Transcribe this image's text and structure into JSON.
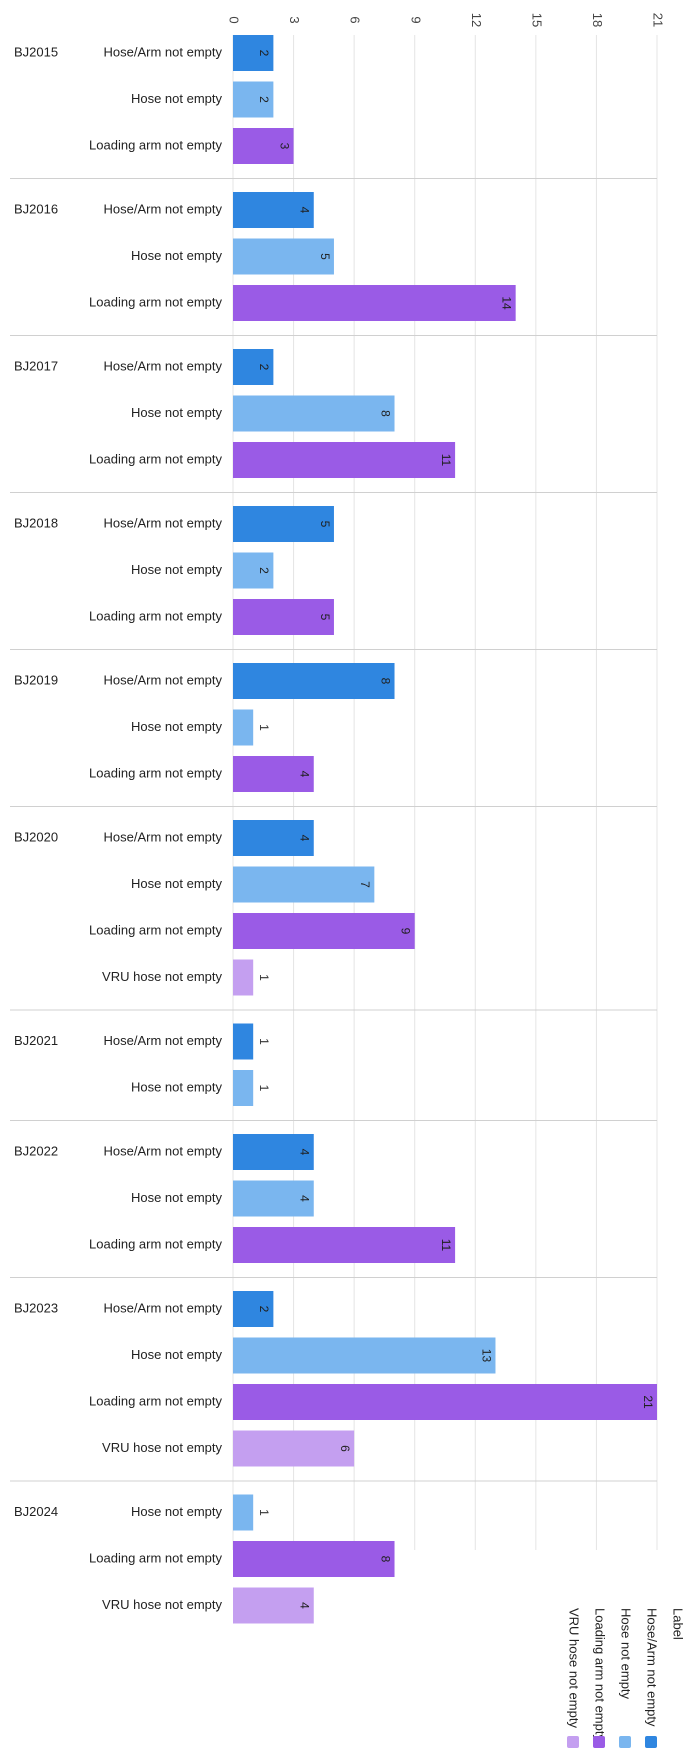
{
  "chart_data": {
    "type": "bar",
    "orientation": "horizontal",
    "title": "",
    "xlabel": "",
    "ylabel": "",
    "xlim": [
      0,
      21
    ],
    "xticks": [
      0,
      3,
      6,
      9,
      12,
      15,
      18,
      21
    ],
    "grid": true,
    "legend_title": "Label",
    "legend_position": "bottom-right",
    "series": [
      {
        "name": "Hose/Arm not empty",
        "color": "#2f86e0"
      },
      {
        "name": "Hose not empty",
        "color": "#7ab6ef"
      },
      {
        "name": "Loading arm not empty",
        "color": "#9a5be6"
      },
      {
        "name": "VRU hose not empty",
        "color": "#c49ff0"
      }
    ],
    "groups": [
      {
        "name": "BJ2015",
        "bars": [
          {
            "series": 0,
            "label": "Hose/Arm not empty",
            "value": 2
          },
          {
            "series": 1,
            "label": "Hose not empty",
            "value": 2
          },
          {
            "series": 2,
            "label": "Loading arm not empty",
            "value": 3
          }
        ]
      },
      {
        "name": "BJ2016",
        "bars": [
          {
            "series": 0,
            "label": "Hose/Arm not empty",
            "value": 4
          },
          {
            "series": 1,
            "label": "Hose not empty",
            "value": 5
          },
          {
            "series": 2,
            "label": "Loading arm not empty",
            "value": 14
          }
        ]
      },
      {
        "name": "BJ2017",
        "bars": [
          {
            "series": 0,
            "label": "Hose/Arm not empty",
            "value": 2
          },
          {
            "series": 1,
            "label": "Hose not empty",
            "value": 8
          },
          {
            "series": 2,
            "label": "Loading arm not empty",
            "value": 11
          }
        ]
      },
      {
        "name": "BJ2018",
        "bars": [
          {
            "series": 0,
            "label": "Hose/Arm not empty",
            "value": 5
          },
          {
            "series": 1,
            "label": "Hose not empty",
            "value": 2
          },
          {
            "series": 2,
            "label": "Loading arm not empty",
            "value": 5
          }
        ]
      },
      {
        "name": "BJ2019",
        "bars": [
          {
            "series": 0,
            "label": "Hose/Arm not empty",
            "value": 8
          },
          {
            "series": 1,
            "label": "Hose not empty",
            "value": 1
          },
          {
            "series": 2,
            "label": "Loading arm not empty",
            "value": 4
          }
        ]
      },
      {
        "name": "BJ2020",
        "bars": [
          {
            "series": 0,
            "label": "Hose/Arm not empty",
            "value": 4
          },
          {
            "series": 1,
            "label": "Hose not empty",
            "value": 7
          },
          {
            "series": 2,
            "label": "Loading arm not empty",
            "value": 9
          },
          {
            "series": 3,
            "label": "VRU hose not empty",
            "value": 1
          }
        ]
      },
      {
        "name": "BJ2021",
        "bars": [
          {
            "series": 0,
            "label": "Hose/Arm not empty",
            "value": 1
          },
          {
            "series": 1,
            "label": "Hose not empty",
            "value": 1
          }
        ]
      },
      {
        "name": "BJ2022",
        "bars": [
          {
            "series": 0,
            "label": "Hose/Arm not empty",
            "value": 4
          },
          {
            "series": 1,
            "label": "Hose not empty",
            "value": 4
          },
          {
            "series": 2,
            "label": "Loading arm not empty",
            "value": 11
          }
        ]
      },
      {
        "name": "BJ2023",
        "bars": [
          {
            "series": 0,
            "label": "Hose/Arm not empty",
            "value": 2
          },
          {
            "series": 1,
            "label": "Hose not empty",
            "value": 13
          },
          {
            "series": 2,
            "label": "Loading arm not empty",
            "value": 21
          },
          {
            "series": 3,
            "label": "VRU hose not empty",
            "value": 6
          }
        ]
      },
      {
        "name": "BJ2024",
        "bars": [
          {
            "series": 1,
            "label": "Hose not empty",
            "value": 1
          },
          {
            "series": 2,
            "label": "Loading arm not empty",
            "value": 8
          },
          {
            "series": 3,
            "label": "VRU hose not empty",
            "value": 4
          }
        ]
      }
    ]
  }
}
